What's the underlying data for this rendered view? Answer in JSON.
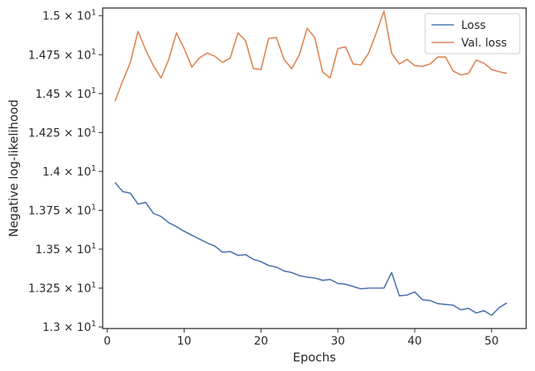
{
  "chart_data": {
    "type": "line",
    "xlabel": "Epochs",
    "ylabel": "Negative log-likelihood",
    "xlim": [
      -0.6,
      54.5
    ],
    "ylim": [
      12.99,
      15.05
    ],
    "x_ticks": [
      0,
      10,
      20,
      30,
      40,
      50
    ],
    "x_tick_labels": [
      "0",
      "10",
      "20",
      "30",
      "40",
      "50"
    ],
    "y_ticks": [
      13.0,
      13.25,
      13.5,
      13.75,
      14.0,
      14.25,
      14.5,
      14.75,
      15.0
    ],
    "y_tick_labels": [
      {
        "mant": "1.3",
        "exp": "1"
      },
      {
        "mant": "1.325",
        "exp": "1"
      },
      {
        "mant": "1.35",
        "exp": "1"
      },
      {
        "mant": "1.375",
        "exp": "1"
      },
      {
        "mant": "1.4",
        "exp": "1"
      },
      {
        "mant": "1.425",
        "exp": "1"
      },
      {
        "mant": "1.45",
        "exp": "1"
      },
      {
        "mant": "1.475",
        "exp": "1"
      },
      {
        "mant": "1.5",
        "exp": "1"
      }
    ],
    "grid": false,
    "legend_position": "top-right",
    "x": [
      1,
      2,
      3,
      4,
      5,
      6,
      7,
      8,
      9,
      10,
      11,
      12,
      13,
      14,
      15,
      16,
      17,
      18,
      19,
      20,
      21,
      22,
      23,
      24,
      25,
      26,
      27,
      28,
      29,
      30,
      31,
      32,
      33,
      34,
      35,
      36,
      37,
      38,
      39,
      40,
      41,
      42,
      43,
      44,
      45,
      46,
      47,
      48,
      49,
      50,
      51,
      52
    ],
    "series": [
      {
        "name": "Loss",
        "color": "#4c72b0",
        "values": [
          13.93,
          13.87,
          13.86,
          13.79,
          13.8,
          13.73,
          13.71,
          13.67,
          13.645,
          13.615,
          13.59,
          13.565,
          13.54,
          13.52,
          13.48,
          13.485,
          13.46,
          13.465,
          13.435,
          13.42,
          13.395,
          13.385,
          13.36,
          13.35,
          13.33,
          13.32,
          13.315,
          13.3,
          13.305,
          13.28,
          13.275,
          13.26,
          13.245,
          13.25,
          13.25,
          13.25,
          13.35,
          13.2,
          13.205,
          13.225,
          13.175,
          13.17,
          13.15,
          13.145,
          13.14,
          13.11,
          13.12,
          13.09,
          13.105,
          13.075,
          13.125,
          13.155
        ]
      },
      {
        "name": "Val. loss",
        "color": "#dd8452",
        "values": [
          14.45,
          14.58,
          14.7,
          14.9,
          14.78,
          14.68,
          14.6,
          14.72,
          14.89,
          14.79,
          14.67,
          14.73,
          14.76,
          14.74,
          14.7,
          14.73,
          14.89,
          14.84,
          14.66,
          14.655,
          14.855,
          14.86,
          14.72,
          14.66,
          14.75,
          14.92,
          14.86,
          14.64,
          14.6,
          14.79,
          14.8,
          14.69,
          14.685,
          14.76,
          14.89,
          15.03,
          14.76,
          14.69,
          14.72,
          14.68,
          14.675,
          14.69,
          14.735,
          14.735,
          14.645,
          14.62,
          14.63,
          14.715,
          14.695,
          14.655,
          14.64,
          14.63
        ]
      }
    ]
  }
}
